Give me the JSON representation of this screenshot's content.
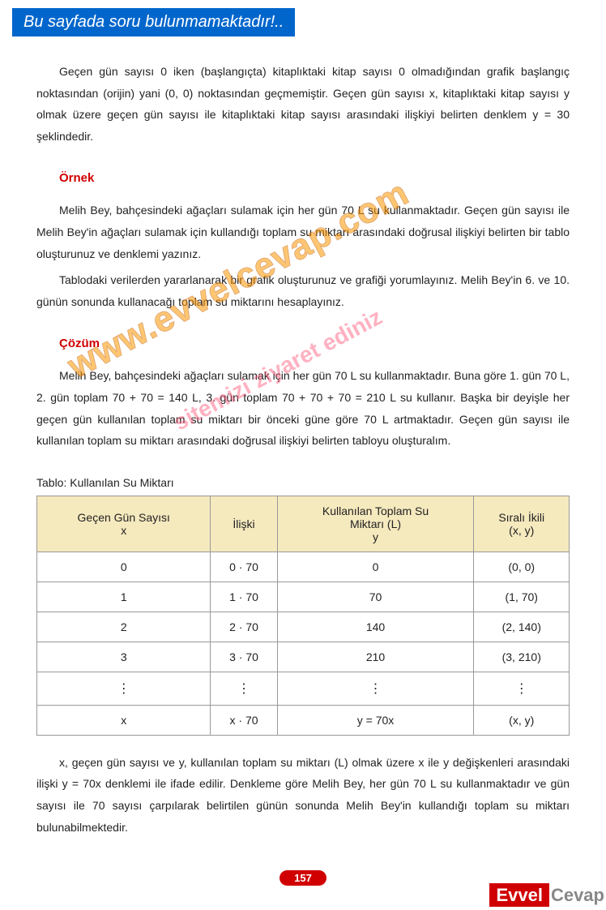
{
  "banner": "Bu sayfada soru bulunmamaktadır!..",
  "intro": "Geçen gün sayısı 0 iken (başlangıçta) kitaplıktaki kitap sayısı 0 olmadığından grafik başlangıç noktasından (orijin) yani (0, 0) noktasından geçmemiştir. Geçen gün sayısı x, kitaplıktaki kitap sayısı y olmak üzere geçen gün sayısı ile kitaplıktaki kitap sayısı arasındaki ilişkiyi  belirten denklem y = 30 şeklindedir.",
  "example_heading": "Örnek",
  "example_p1": "Melih Bey, bahçesindeki ağaçları sulamak için her gün 70 L su kullanmaktadır. Geçen gün sayısı ile Melih Bey'in ağaçları sulamak için kullandığı toplam su miktarı arasındaki doğrusal ilişkiyi belirten bir tablo oluşturunuz ve denklemi yazınız.",
  "example_p2": "Tablodaki verilerden yararlanarak bir grafik oluşturunuz ve grafiği yorumlayınız. Melih Bey'in 6. ve 10. günün sonunda kullanacağı toplam su miktarını hesaplayınız.",
  "solution_heading": "Çözüm",
  "solution_p1": "Melih Bey, bahçesindeki ağaçları sulamak için her gün  70 L su kullanmaktadır. Buna göre 1. gün 70 L, 2. gün toplam 70 + 70 = 140 L, 3. gün toplam 70 + 70 + 70 = 210 L su kullanır. Başka bir deyişle her geçen gün kullanılan toplam su miktarı bir önceki güne göre 70 L artmaktadır. Geçen gün sayısı ile kullanılan toplam su miktarı arasındaki doğrusal ilişkiyi belirten tabloyu oluşturalım.",
  "table_caption": "Tablo: Kullanılan Su Miktarı",
  "table": {
    "headers": [
      {
        "l1": "Geçen Gün Sayısı",
        "l2": "x"
      },
      {
        "l1": "İlişki",
        "l2": ""
      },
      {
        "l1": "Kullanılan Toplam Su",
        "l2": "Miktarı (L)",
        "l3": "y"
      },
      {
        "l1": "Sıralı İkili",
        "l2": "(x, y)"
      }
    ],
    "rows": [
      [
        "0",
        "0 · 70",
        "0",
        "(0, 0)"
      ],
      [
        "1",
        "1 · 70",
        "70",
        "(1, 70)"
      ],
      [
        "2",
        "2 · 70",
        "140",
        "(2, 140)"
      ],
      [
        "3",
        "3 · 70",
        "210",
        "(3, 210)"
      ],
      [
        "⋮",
        "⋮",
        "⋮",
        "⋮"
      ],
      [
        "x",
        "x · 70",
        "y = 70x",
        "(x, y)"
      ]
    ]
  },
  "after_table": "x, geçen gün sayısı ve y, kullanılan toplam su miktarı (L) olmak üzere x ile y değişkenleri arasındaki ilişki y = 70x denklemi ile ifade edilir. Denkleme göre Melih Bey, her gün 70 L su kullanmaktadır ve gün sayısı ile 70 sayısı çarpılarak belirtilen günün sonunda Melih Bey'in kullandığı toplam su miktarı bulunabilmektedir.",
  "page_number": "157",
  "watermark_main": "www.evvelcevap.com",
  "watermark_sub": "sitemizi ziyaret ediniz",
  "logo": {
    "part1": "Evvel",
    "part2": "Cevap"
  }
}
